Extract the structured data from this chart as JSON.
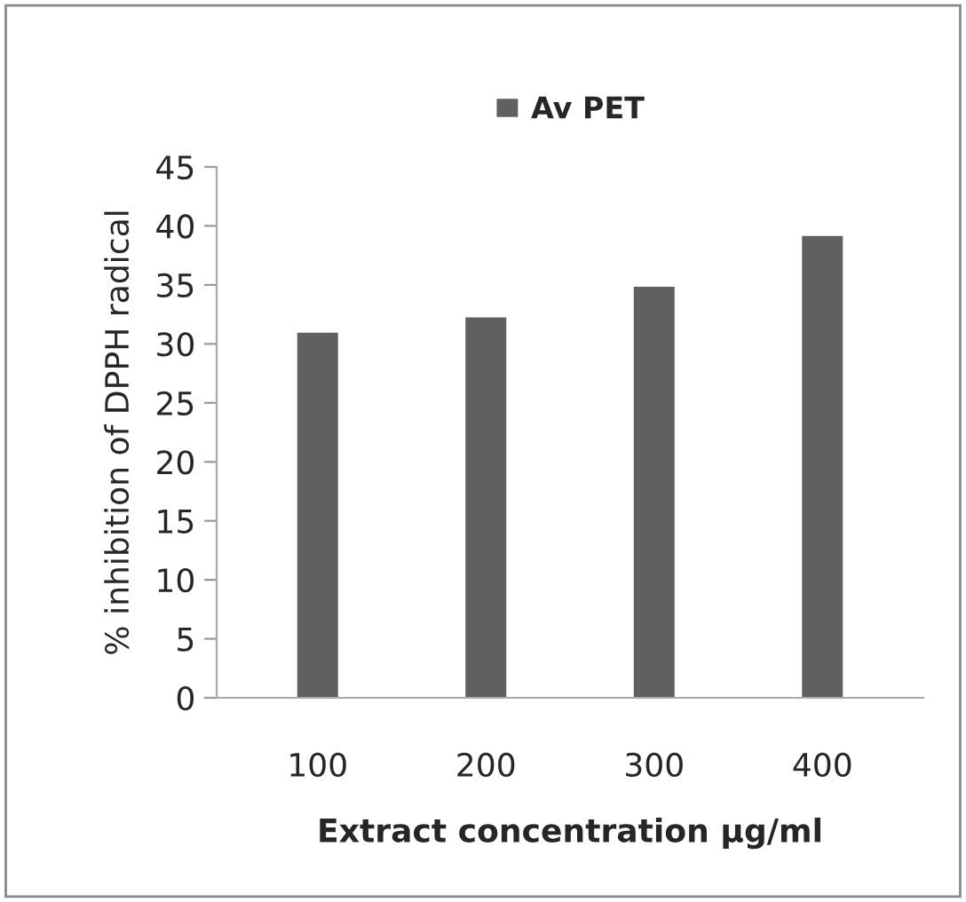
{
  "chart_data": {
    "type": "bar",
    "xlabel": "Extract concentration µg/ml",
    "ylabel": "% inhibition of DPPH radical",
    "categories": [
      "100",
      "200",
      "300",
      "400"
    ],
    "series": [
      {
        "name": "Av PET",
        "color": "#606060",
        "values": [
          31.0,
          32.3,
          34.9,
          39.2
        ]
      }
    ],
    "ylim": [
      0,
      45
    ],
    "yticks": [
      0,
      5,
      10,
      15,
      20,
      25,
      30,
      35,
      40,
      45
    ],
    "grid": false,
    "legend": "top"
  }
}
